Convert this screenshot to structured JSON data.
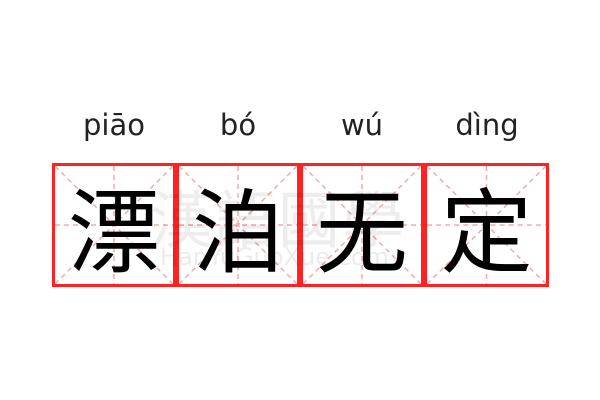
{
  "watermark": {
    "logo_text": "漢語國學",
    "url_text": "HanYuGuoXue.com"
  },
  "colors": {
    "border": "#ff2222",
    "guide": "#f7a8a8"
  },
  "characters": [
    {
      "pinyin": "piāo",
      "hanzi": "漂"
    },
    {
      "pinyin": "bó",
      "hanzi": "泊"
    },
    {
      "pinyin": "wú",
      "hanzi": "无"
    },
    {
      "pinyin": "dìng",
      "hanzi": "定"
    }
  ]
}
